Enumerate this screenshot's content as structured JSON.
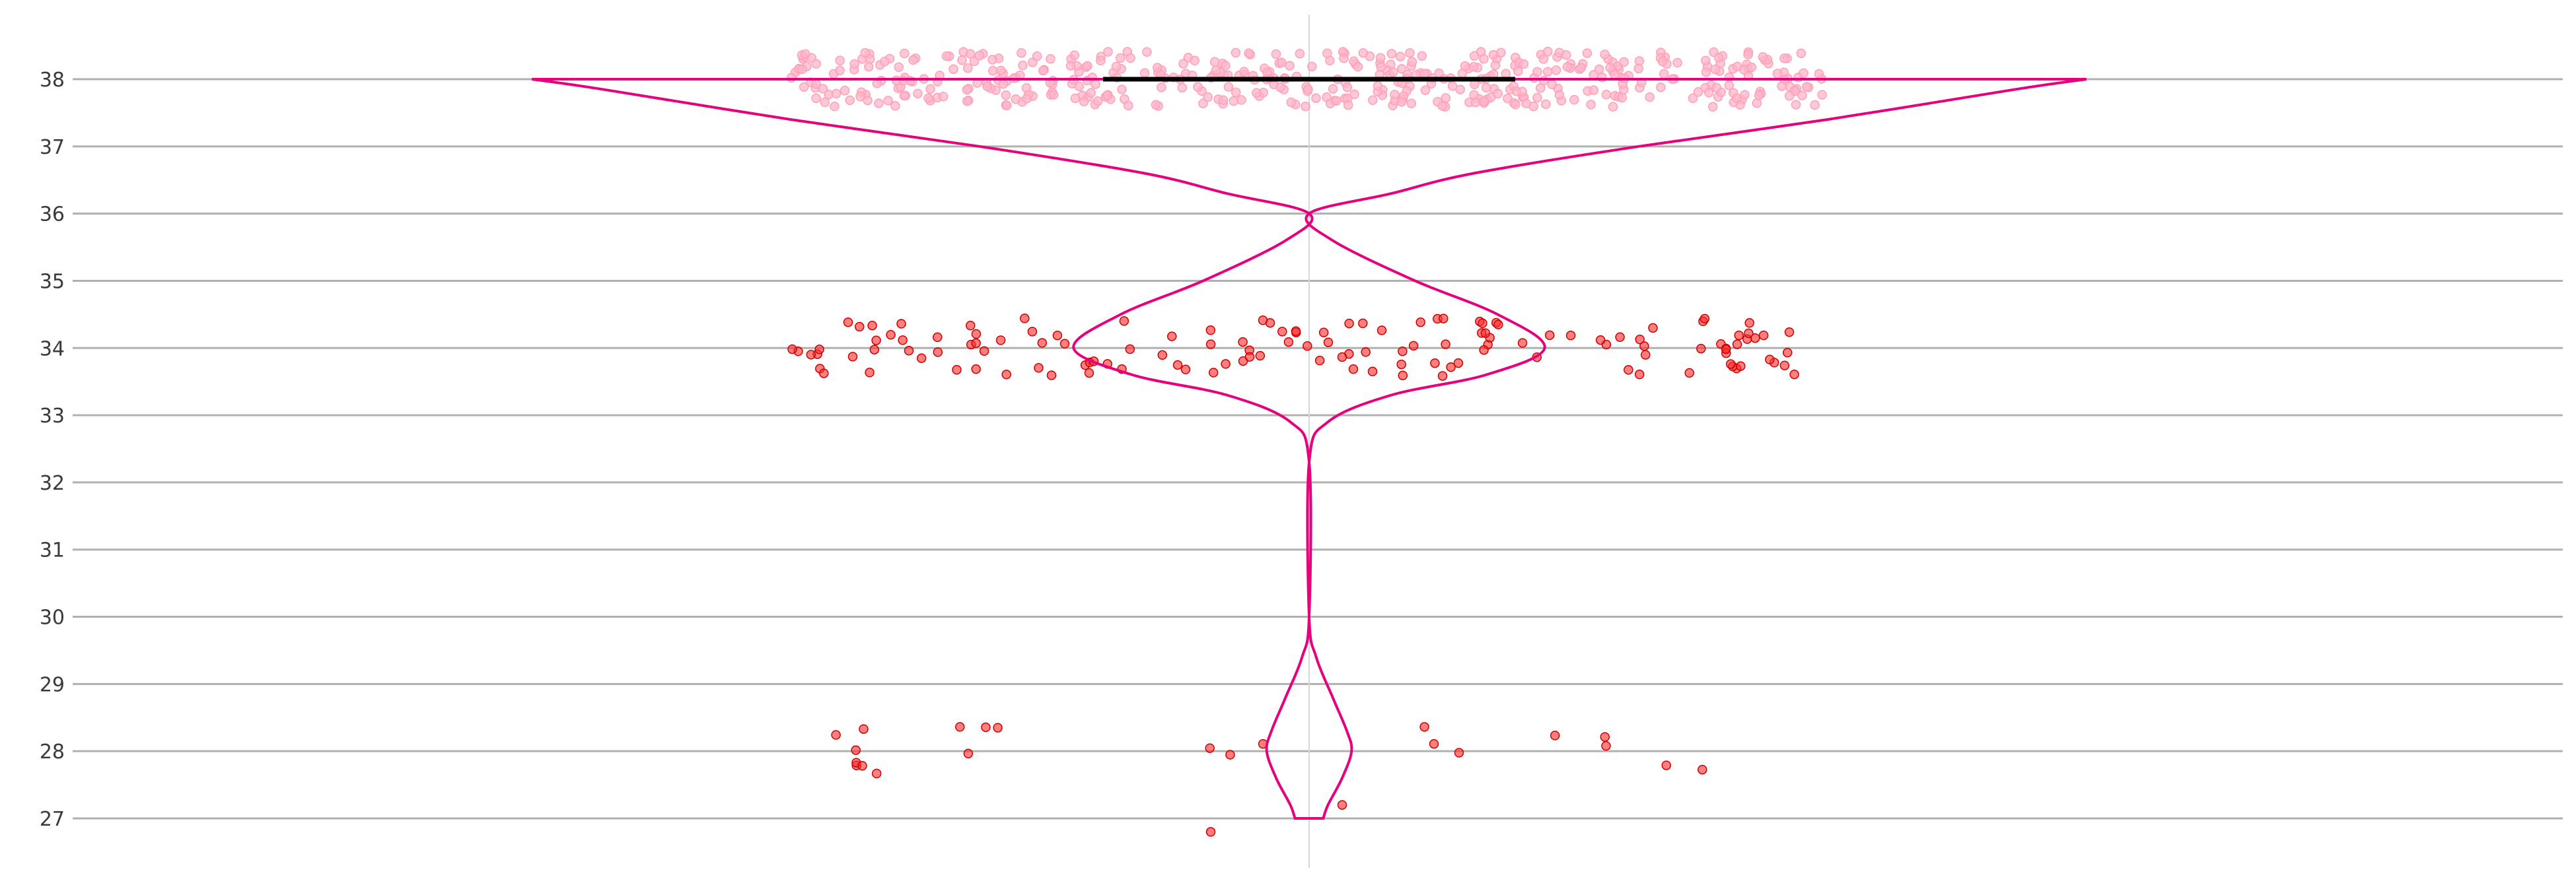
{
  "chart_data": {
    "type": "violin",
    "title": "",
    "xlabel": "",
    "ylabel": "",
    "ylim": [
      27,
      38
    ],
    "yticks": [
      27,
      28,
      29,
      30,
      31,
      32,
      33,
      34,
      35,
      36,
      37,
      38
    ],
    "grid": "horizontal",
    "legend": "none",
    "colors": {
      "violin_outline": "#e6007e",
      "points_low": "#ff2a2a",
      "points_top": "#ffb6c8",
      "median_line": "#000000",
      "grid": "#b0b0b0",
      "center_axis": "#d8d8d8"
    },
    "density_profile": [
      {
        "y": 38.0,
        "half_width": 0.33
      },
      {
        "y": 37.85,
        "half_width": 0.3
      },
      {
        "y": 37.4,
        "half_width": 0.22
      },
      {
        "y": 37.0,
        "half_width": 0.14
      },
      {
        "y": 36.6,
        "half_width": 0.07
      },
      {
        "y": 36.3,
        "half_width": 0.035
      },
      {
        "y": 36.0,
        "half_width": 0.0
      },
      {
        "y": 35.6,
        "half_width": 0.01
      },
      {
        "y": 35.0,
        "half_width": 0.045
      },
      {
        "y": 34.5,
        "half_width": 0.08
      },
      {
        "y": 34.0,
        "half_width": 0.1
      },
      {
        "y": 33.6,
        "half_width": 0.075
      },
      {
        "y": 33.3,
        "half_width": 0.035
      },
      {
        "y": 32.9,
        "half_width": 0.008
      },
      {
        "y": 32.3,
        "half_width": 0.0
      },
      {
        "y": 30.0,
        "half_width": 0.0
      },
      {
        "y": 29.4,
        "half_width": 0.003
      },
      {
        "y": 28.8,
        "half_width": 0.01
      },
      {
        "y": 28.3,
        "half_width": 0.016
      },
      {
        "y": 28.0,
        "half_width": 0.018
      },
      {
        "y": 27.6,
        "half_width": 0.014
      },
      {
        "y": 27.2,
        "half_width": 0.008
      },
      {
        "y": 27.0,
        "half_width": 0.006
      }
    ],
    "median": 38,
    "median_half_width": 0.1,
    "points": {
      "top_cluster_value": 38,
      "top_cluster_count": 480,
      "mid_cluster_value": 34,
      "mid_cluster_count": 135,
      "low_cluster_value": 28,
      "low_cluster_count": 22,
      "outliers": [
        26.8,
        27.2
      ]
    }
  }
}
